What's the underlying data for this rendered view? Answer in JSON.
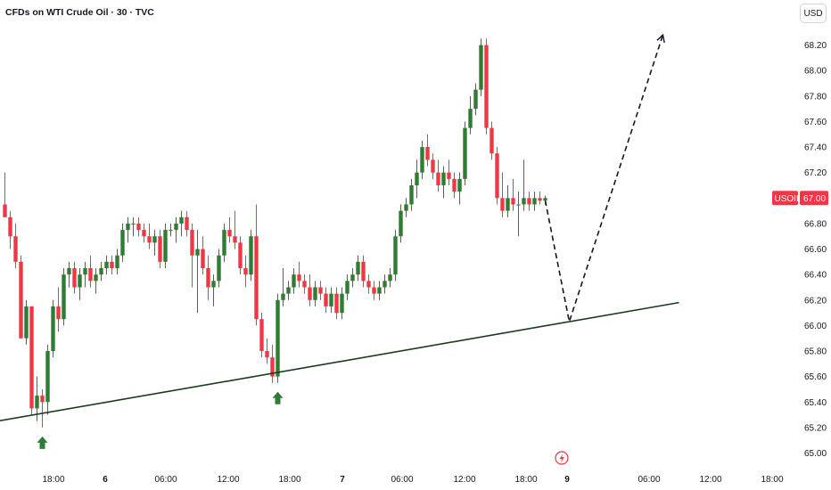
{
  "header": {
    "title": "CFDs on WTI Crude Oil · 30 · TVC",
    "currency": "USD"
  },
  "colors": {
    "up": "#2e7d32",
    "down": "#f23645",
    "tag": "#f23645",
    "trendline": "#1b3a1f",
    "arrow": "#2e7d32",
    "lightning": "#f23645"
  },
  "icons": {
    "event": "lightning-icon"
  },
  "chart_data": {
    "type": "candlestick",
    "symbol": "USOIL",
    "last_price": "67.00",
    "ylim": [
      64.9,
      68.5
    ],
    "y_ticks": [
      "65.00",
      "65.20",
      "65.40",
      "65.60",
      "65.80",
      "66.00",
      "66.20",
      "66.40",
      "66.60",
      "66.80",
      "67.00",
      "67.20",
      "67.40",
      "67.60",
      "67.80",
      "68.00",
      "68.20"
    ],
    "x_ticks": [
      {
        "label": "18:00",
        "bold": false
      },
      {
        "label": "6",
        "bold": true
      },
      {
        "label": "06:00",
        "bold": false
      },
      {
        "label": "12:00",
        "bold": false
      },
      {
        "label": "18:00",
        "bold": false
      },
      {
        "label": "7",
        "bold": true
      },
      {
        "label": "06:00",
        "bold": false
      },
      {
        "label": "12:00",
        "bold": false
      },
      {
        "label": "18:00",
        "bold": false
      },
      {
        "label": "9",
        "bold": true
      },
      {
        "label": "06:00",
        "bold": false
      },
      {
        "label": "12:00",
        "bold": false
      },
      {
        "label": "18:00",
        "bold": false
      }
    ],
    "candles": [
      [
        66.95,
        67.2,
        66.85,
        66.85
      ],
      [
        66.85,
        66.9,
        66.6,
        66.7
      ],
      [
        66.7,
        66.8,
        66.45,
        66.5
      ],
      [
        66.5,
        66.55,
        65.9,
        65.9
      ],
      [
        65.9,
        66.2,
        65.85,
        66.15
      ],
      [
        66.15,
        66.15,
        65.3,
        65.35
      ],
      [
        65.35,
        65.6,
        65.25,
        65.45
      ],
      [
        65.45,
        65.5,
        65.2,
        65.4
      ],
      [
        65.4,
        65.85,
        65.3,
        65.8
      ],
      [
        65.8,
        66.2,
        65.75,
        66.15
      ],
      [
        66.15,
        66.3,
        65.95,
        66.05
      ],
      [
        66.05,
        66.45,
        66.0,
        66.4
      ],
      [
        66.4,
        66.5,
        66.3,
        66.45
      ],
      [
        66.45,
        66.5,
        66.25,
        66.3
      ],
      [
        66.3,
        66.45,
        66.2,
        66.4
      ],
      [
        66.4,
        66.5,
        66.3,
        66.45
      ],
      [
        66.45,
        66.55,
        66.3,
        66.35
      ],
      [
        66.35,
        66.45,
        66.25,
        66.4
      ],
      [
        66.4,
        66.5,
        66.35,
        66.45
      ],
      [
        66.45,
        66.55,
        66.4,
        66.5
      ],
      [
        66.5,
        66.55,
        66.4,
        66.45
      ],
      [
        66.45,
        66.6,
        66.4,
        66.55
      ],
      [
        66.55,
        66.8,
        66.5,
        66.75
      ],
      [
        66.75,
        66.85,
        66.65,
        66.8
      ],
      [
        66.8,
        66.85,
        66.7,
        66.8
      ],
      [
        66.8,
        66.85,
        66.7,
        66.75
      ],
      [
        66.75,
        66.8,
        66.65,
        66.7
      ],
      [
        66.7,
        66.8,
        66.6,
        66.65
      ],
      [
        66.65,
        66.75,
        66.55,
        66.7
      ],
      [
        66.7,
        66.75,
        66.45,
        66.5
      ],
      [
        66.5,
        66.8,
        66.45,
        66.75
      ],
      [
        66.75,
        66.8,
        66.7,
        66.75
      ],
      [
        66.75,
        66.85,
        66.65,
        66.8
      ],
      [
        66.8,
        66.9,
        66.7,
        66.85
      ],
      [
        66.85,
        66.9,
        66.7,
        66.75
      ],
      [
        66.75,
        66.8,
        66.3,
        66.55
      ],
      [
        66.55,
        66.75,
        66.1,
        66.6
      ],
      [
        66.6,
        66.7,
        66.4,
        66.45
      ],
      [
        66.45,
        66.55,
        66.2,
        66.3
      ],
      [
        66.3,
        66.4,
        66.15,
        66.35
      ],
      [
        66.35,
        66.6,
        66.3,
        66.55
      ],
      [
        66.55,
        66.8,
        66.5,
        66.75
      ],
      [
        66.75,
        66.85,
        66.65,
        66.7
      ],
      [
        66.7,
        66.9,
        66.6,
        66.65
      ],
      [
        66.65,
        66.7,
        66.4,
        66.45
      ],
      [
        66.45,
        66.55,
        66.3,
        66.4
      ],
      [
        66.4,
        66.75,
        66.35,
        66.7
      ],
      [
        66.7,
        66.95,
        66.0,
        66.05
      ],
      [
        66.05,
        66.1,
        65.75,
        65.8
      ],
      [
        65.8,
        65.9,
        65.7,
        65.75
      ],
      [
        65.75,
        65.85,
        65.55,
        65.6
      ],
      [
        65.6,
        66.25,
        65.55,
        66.2
      ],
      [
        66.2,
        66.45,
        66.15,
        66.25
      ],
      [
        66.25,
        66.35,
        66.2,
        66.3
      ],
      [
        66.3,
        66.45,
        66.25,
        66.4
      ],
      [
        66.4,
        66.5,
        66.3,
        66.35
      ],
      [
        66.35,
        66.4,
        66.25,
        66.3
      ],
      [
        66.3,
        66.4,
        66.15,
        66.2
      ],
      [
        66.2,
        66.35,
        66.15,
        66.3
      ],
      [
        66.3,
        66.35,
        66.2,
        66.25
      ],
      [
        66.25,
        66.3,
        66.1,
        66.15
      ],
      [
        66.15,
        66.3,
        66.1,
        66.25
      ],
      [
        66.25,
        66.3,
        66.05,
        66.1
      ],
      [
        66.1,
        66.3,
        66.05,
        66.25
      ],
      [
        66.25,
        66.4,
        66.2,
        66.35
      ],
      [
        66.35,
        66.45,
        66.3,
        66.4
      ],
      [
        66.4,
        66.55,
        66.35,
        66.5
      ],
      [
        66.5,
        66.55,
        66.3,
        66.35
      ],
      [
        66.35,
        66.4,
        66.25,
        66.3
      ],
      [
        66.3,
        66.35,
        66.2,
        66.25
      ],
      [
        66.25,
        66.35,
        66.2,
        66.3
      ],
      [
        66.3,
        66.4,
        66.25,
        66.35
      ],
      [
        66.35,
        66.45,
        66.3,
        66.4
      ],
      [
        66.4,
        66.75,
        66.35,
        66.7
      ],
      [
        66.7,
        66.95,
        66.65,
        66.9
      ],
      [
        66.9,
        67.0,
        66.85,
        66.95
      ],
      [
        66.95,
        67.15,
        66.9,
        67.1
      ],
      [
        67.1,
        67.3,
        67.0,
        67.2
      ],
      [
        67.2,
        67.45,
        67.15,
        67.4
      ],
      [
        67.4,
        67.5,
        67.25,
        67.3
      ],
      [
        67.3,
        67.35,
        67.15,
        67.2
      ],
      [
        67.2,
        67.3,
        67.05,
        67.1
      ],
      [
        67.1,
        67.25,
        67.0,
        67.2
      ],
      [
        67.2,
        67.3,
        67.1,
        67.15
      ],
      [
        67.15,
        67.2,
        67.0,
        67.05
      ],
      [
        67.05,
        67.2,
        66.95,
        67.15
      ],
      [
        67.15,
        67.6,
        67.1,
        67.55
      ],
      [
        67.55,
        67.8,
        67.5,
        67.7
      ],
      [
        67.7,
        67.9,
        67.65,
        67.85
      ],
      [
        67.85,
        68.25,
        67.8,
        68.2
      ],
      [
        68.2,
        68.25,
        67.5,
        67.55
      ],
      [
        67.55,
        67.6,
        67.3,
        67.35
      ],
      [
        67.35,
        67.4,
        66.95,
        67.0
      ],
      [
        67.0,
        67.2,
        66.85,
        66.9
      ],
      [
        66.9,
        67.1,
        66.85,
        67.0
      ],
      [
        67.0,
        67.15,
        66.9,
        66.95
      ],
      [
        66.95,
        67.05,
        66.7,
        66.95
      ],
      [
        66.95,
        67.3,
        66.9,
        67.0
      ],
      [
        67.0,
        67.05,
        66.9,
        66.95
      ],
      [
        66.95,
        67.05,
        66.9,
        67.0
      ],
      [
        67.0,
        67.05,
        66.95,
        66.98
      ],
      [
        66.98,
        67.02,
        66.95,
        67.0
      ]
    ],
    "trendline": {
      "from": [
        -5.5,
        65.22
      ],
      "to": [
        126,
        66.18
      ]
    },
    "forecast_path": [
      [
        101,
        66.98
      ],
      [
        105.5,
        66.03
      ],
      [
        123,
        68.28
      ]
    ],
    "markers": [
      7,
      51
    ]
  }
}
